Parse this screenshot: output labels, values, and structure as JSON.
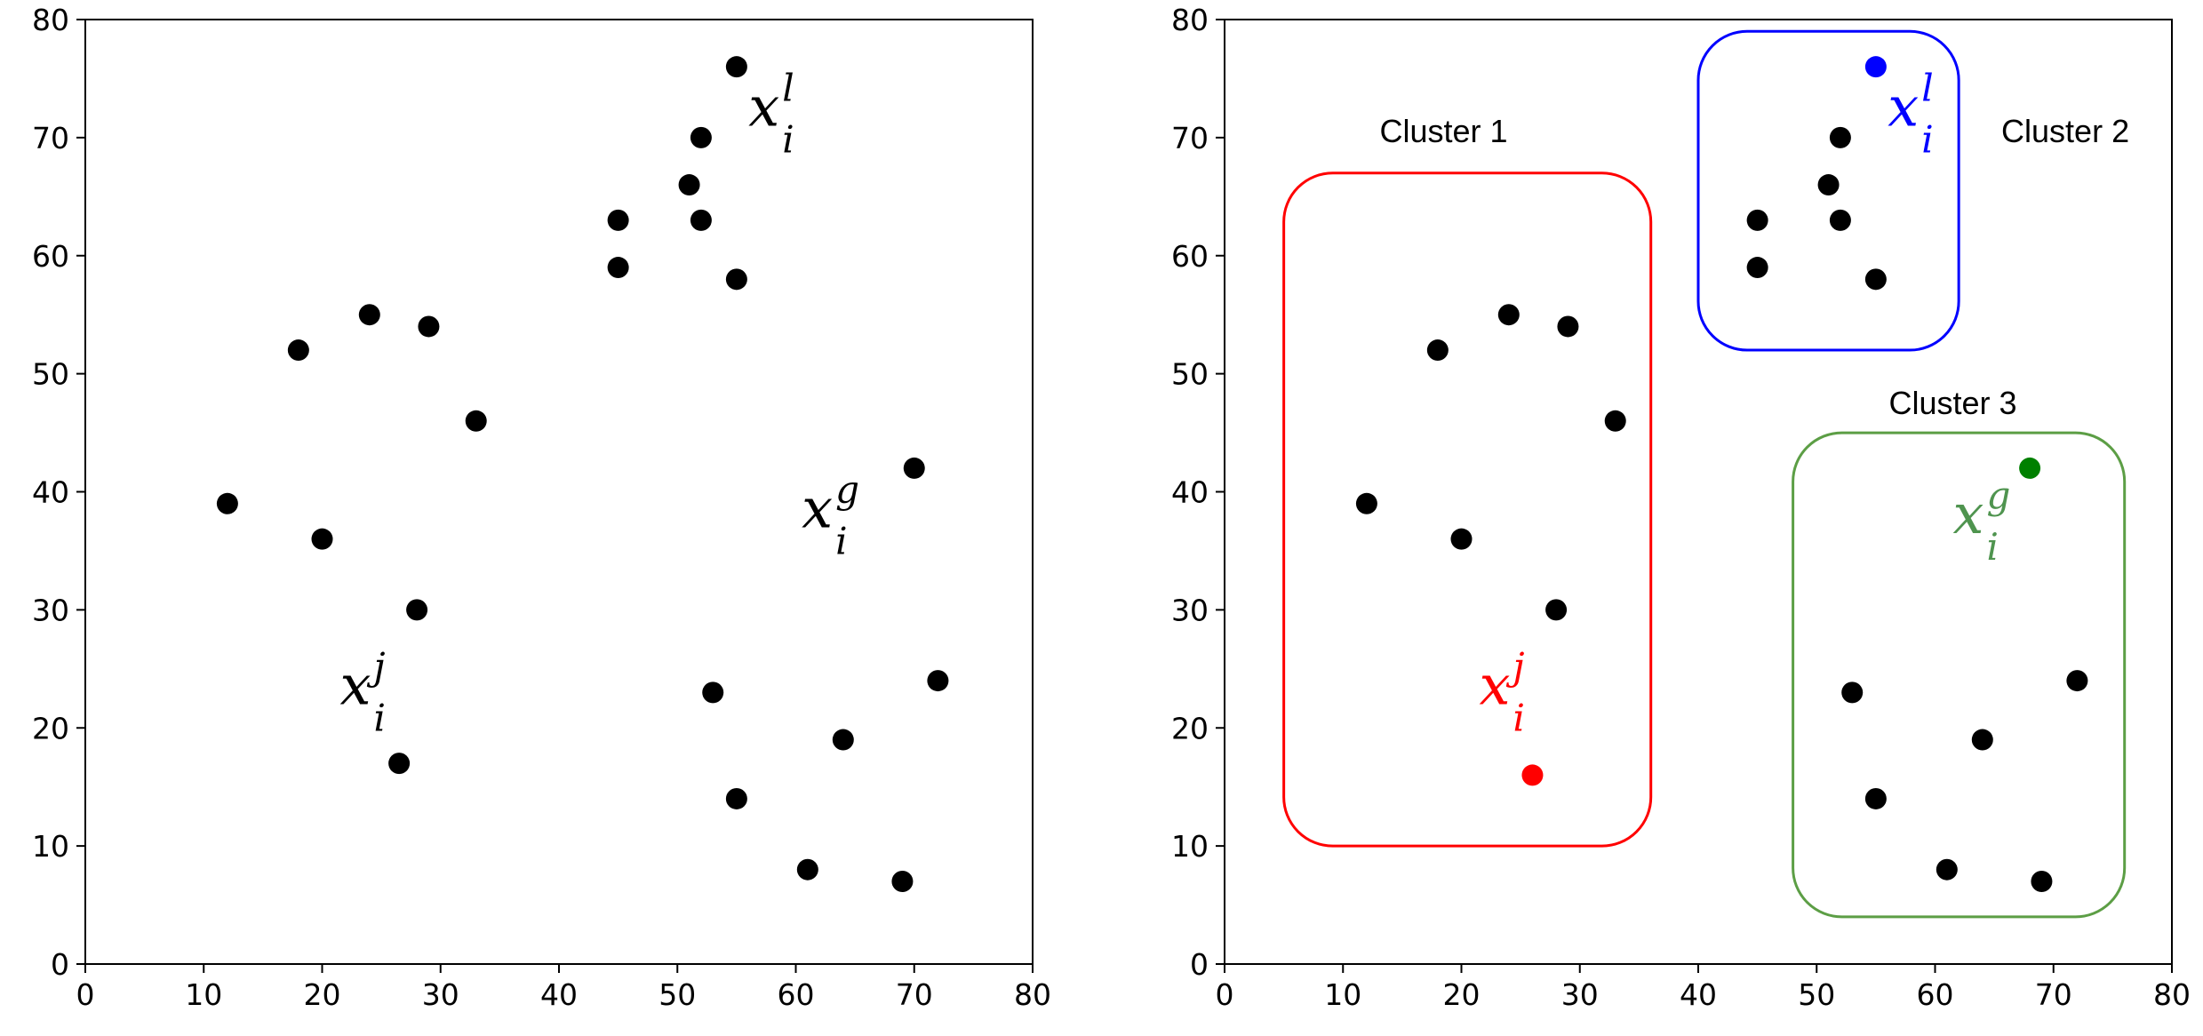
{
  "chart_data": [
    {
      "type": "scatter",
      "panel": "left",
      "xlim": [
        0,
        80
      ],
      "ylim": [
        0,
        80
      ],
      "xticks": [
        "0",
        "10",
        "20",
        "30",
        "40",
        "50",
        "60",
        "70",
        "80"
      ],
      "yticks": [
        "0",
        "10",
        "20",
        "30",
        "40",
        "50",
        "60",
        "70",
        "80"
      ],
      "grid": false,
      "points": [
        {
          "x": 55,
          "y": 76,
          "color": "#000000"
        },
        {
          "x": 52,
          "y": 70,
          "color": "#000000"
        },
        {
          "x": 51,
          "y": 66,
          "color": "#000000"
        },
        {
          "x": 45,
          "y": 63,
          "color": "#000000"
        },
        {
          "x": 52,
          "y": 63,
          "color": "#000000"
        },
        {
          "x": 45,
          "y": 59,
          "color": "#000000"
        },
        {
          "x": 55,
          "y": 58,
          "color": "#000000"
        },
        {
          "x": 24,
          "y": 55,
          "color": "#000000"
        },
        {
          "x": 29,
          "y": 54,
          "color": "#000000"
        },
        {
          "x": 18,
          "y": 52,
          "color": "#000000"
        },
        {
          "x": 33,
          "y": 46,
          "color": "#000000"
        },
        {
          "x": 12,
          "y": 39,
          "color": "#000000"
        },
        {
          "x": 20,
          "y": 36,
          "color": "#000000"
        },
        {
          "x": 28,
          "y": 30,
          "color": "#000000"
        },
        {
          "x": 26.5,
          "y": 17,
          "color": "#000000"
        },
        {
          "x": 70,
          "y": 42,
          "color": "#000000"
        },
        {
          "x": 53,
          "y": 23,
          "color": "#000000"
        },
        {
          "x": 72,
          "y": 24,
          "color": "#000000"
        },
        {
          "x": 64,
          "y": 19,
          "color": "#000000"
        },
        {
          "x": 55,
          "y": 14,
          "color": "#000000"
        },
        {
          "x": 61,
          "y": 8,
          "color": "#000000"
        },
        {
          "x": 69,
          "y": 7,
          "color": "#000000"
        }
      ],
      "annotations": [
        {
          "base": "x",
          "sup": "l",
          "sub": "i",
          "x": 56,
          "y": 71,
          "color": "#000000"
        },
        {
          "base": "x",
          "sup": "g",
          "sub": "i",
          "x": 60.5,
          "y": 37,
          "color": "#000000"
        },
        {
          "base": "x",
          "sup": "j",
          "sub": "i",
          "x": 21.5,
          "y": 22,
          "color": "#000000"
        }
      ],
      "clusters": []
    },
    {
      "type": "scatter",
      "panel": "right",
      "xlim": [
        0,
        80
      ],
      "ylim": [
        0,
        80
      ],
      "xticks": [
        "0",
        "10",
        "20",
        "30",
        "40",
        "50",
        "60",
        "70",
        "80"
      ],
      "yticks": [
        "0",
        "10",
        "20",
        "30",
        "40",
        "50",
        "60",
        "70",
        "80"
      ],
      "grid": false,
      "points": [
        {
          "x": 55,
          "y": 76,
          "color": "#0000ff"
        },
        {
          "x": 52,
          "y": 70,
          "color": "#000000"
        },
        {
          "x": 51,
          "y": 66,
          "color": "#000000"
        },
        {
          "x": 45,
          "y": 63,
          "color": "#000000"
        },
        {
          "x": 52,
          "y": 63,
          "color": "#000000"
        },
        {
          "x": 45,
          "y": 59,
          "color": "#000000"
        },
        {
          "x": 55,
          "y": 58,
          "color": "#000000"
        },
        {
          "x": 24,
          "y": 55,
          "color": "#000000"
        },
        {
          "x": 29,
          "y": 54,
          "color": "#000000"
        },
        {
          "x": 18,
          "y": 52,
          "color": "#000000"
        },
        {
          "x": 33,
          "y": 46,
          "color": "#000000"
        },
        {
          "x": 12,
          "y": 39,
          "color": "#000000"
        },
        {
          "x": 20,
          "y": 36,
          "color": "#000000"
        },
        {
          "x": 28,
          "y": 30,
          "color": "#000000"
        },
        {
          "x": 26,
          "y": 16,
          "color": "#ff0000"
        },
        {
          "x": 68,
          "y": 42,
          "color": "#008000"
        },
        {
          "x": 53,
          "y": 23,
          "color": "#000000"
        },
        {
          "x": 72,
          "y": 24,
          "color": "#000000"
        },
        {
          "x": 64,
          "y": 19,
          "color": "#000000"
        },
        {
          "x": 55,
          "y": 14,
          "color": "#000000"
        },
        {
          "x": 61,
          "y": 8,
          "color": "#000000"
        },
        {
          "x": 69,
          "y": 7,
          "color": "#000000"
        }
      ],
      "annotations": [
        {
          "base": "x",
          "sup": "l",
          "sub": "i",
          "x": 56,
          "y": 71,
          "color": "#0000ff"
        },
        {
          "base": "x",
          "sup": "g",
          "sub": "i",
          "x": 61.5,
          "y": 36.5,
          "color": "#4f944f"
        },
        {
          "base": "x",
          "sup": "j",
          "sub": "i",
          "x": 21.5,
          "y": 22,
          "color": "#ff0000"
        }
      ],
      "clusters": [
        {
          "label": "Cluster 1",
          "color": "#ff0000",
          "x0": 5,
          "x1": 36,
          "y0": 10,
          "y1": 67,
          "label_x": 18.5,
          "label_y": 70.5
        },
        {
          "label": "Cluster 2",
          "color": "#0000ff",
          "x0": 40,
          "x1": 62,
          "y0": 52,
          "y1": 79,
          "label_x": 71,
          "label_y": 70.5
        },
        {
          "label": "Cluster 3",
          "color": "#5c9e45",
          "x0": 48,
          "x1": 76,
          "y0": 4,
          "y1": 45,
          "label_x": 61.5,
          "label_y": 47.5
        }
      ]
    }
  ]
}
